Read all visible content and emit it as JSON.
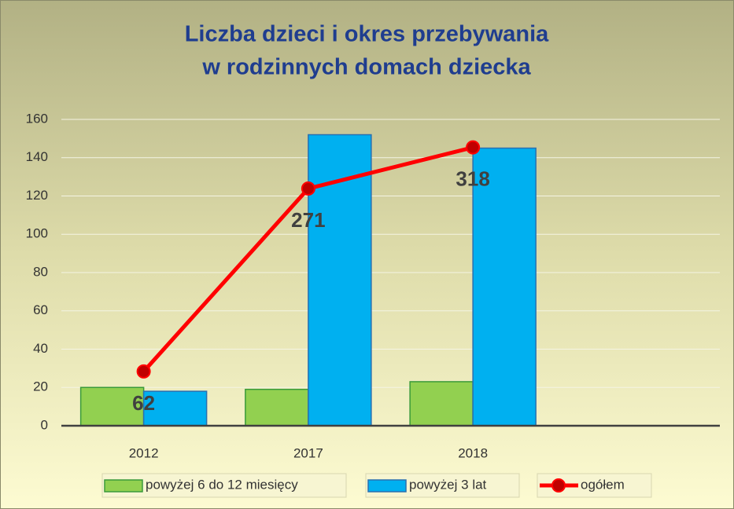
{
  "chart_data": {
    "type": "bar",
    "title": [
      "Liczba dzieci i okres przebywania",
      "w rodzinnych domach dziecka"
    ],
    "categories": [
      "2012",
      "2017",
      "2018",
      null
    ],
    "series": [
      {
        "name": "powyżej 6 do 12 miesięcy",
        "color": "#92d050",
        "type": "bar",
        "values": [
          20,
          19,
          23,
          null
        ]
      },
      {
        "name": "powyżej 3 lat",
        "color": "#00b0f0",
        "type": "bar",
        "values": [
          18,
          152,
          145,
          null
        ]
      },
      {
        "name": "ogółem",
        "color": "#ff0000",
        "type": "line",
        "axis": "y2",
        "values": [
          62,
          271,
          318,
          null
        ]
      }
    ],
    "ylim": [
      0,
      160
    ],
    "yticks": [
      0,
      20,
      40,
      60,
      80,
      100,
      120,
      140,
      160
    ],
    "y2lim": [
      0,
      350
    ],
    "grid": true,
    "legend": "bottom"
  }
}
